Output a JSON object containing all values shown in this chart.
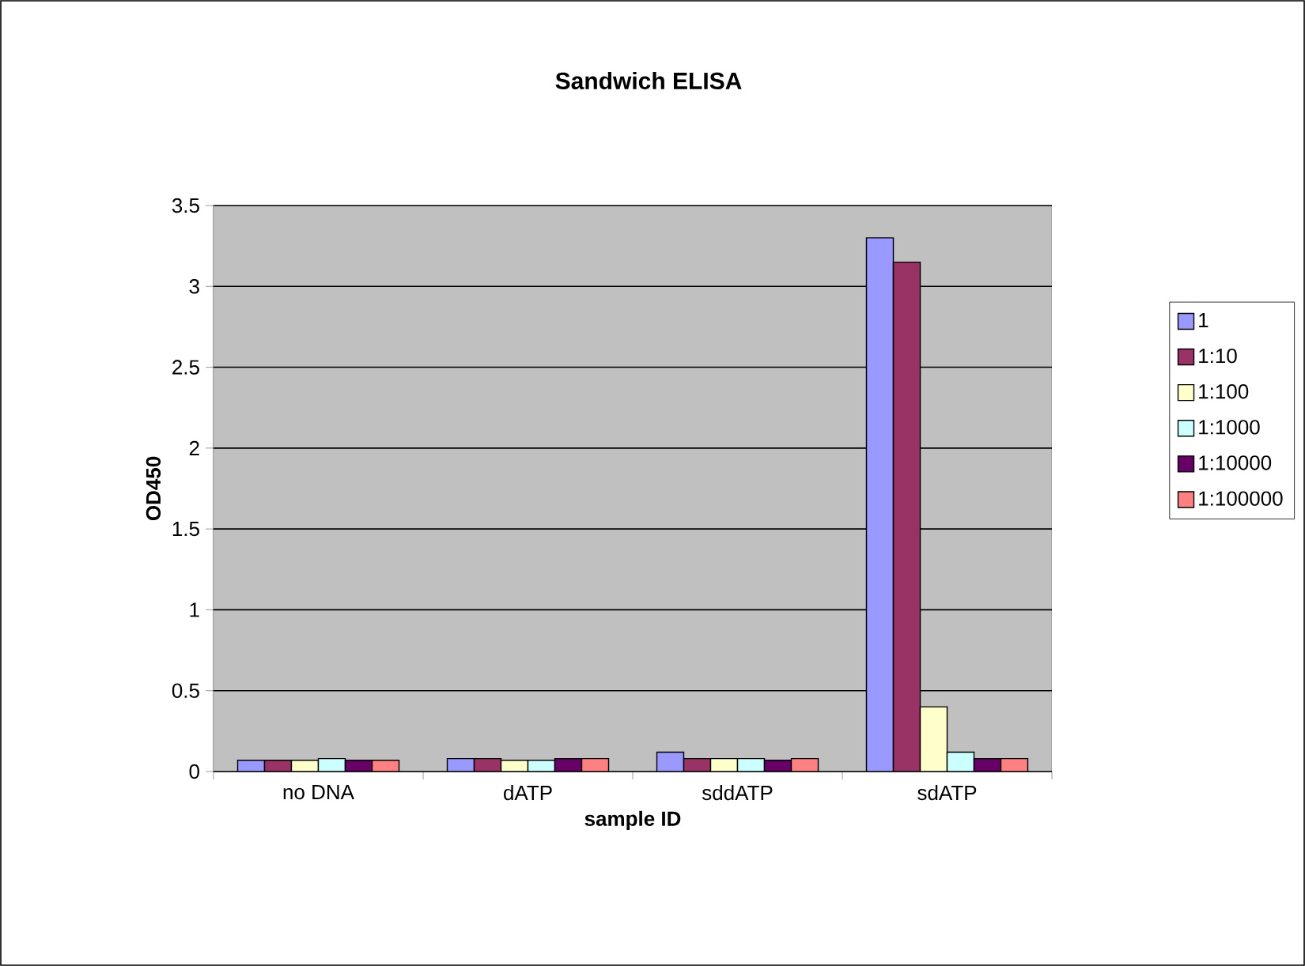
{
  "chart_data": {
    "type": "bar",
    "title": "Sandwich ELISA",
    "xlabel": "sample ID",
    "ylabel": "OD450",
    "categories": [
      "no DNA",
      "dATP",
      "sddATP",
      "sdATP"
    ],
    "series": [
      {
        "name": "1",
        "color": "#9999ff",
        "values": [
          0.07,
          0.08,
          0.12,
          3.3
        ]
      },
      {
        "name": "1:10",
        "color": "#993366",
        "values": [
          0.07,
          0.08,
          0.08,
          3.15
        ]
      },
      {
        "name": "1:100",
        "color": "#ffffcc",
        "values": [
          0.07,
          0.07,
          0.08,
          0.4
        ]
      },
      {
        "name": "1:1000",
        "color": "#ccffff",
        "values": [
          0.08,
          0.07,
          0.08,
          0.12
        ]
      },
      {
        "name": "1:10000",
        "color": "#660066",
        "values": [
          0.07,
          0.08,
          0.07,
          0.08
        ]
      },
      {
        "name": "1:100000",
        "color": "#ff8080",
        "values": [
          0.07,
          0.08,
          0.08,
          0.08
        ]
      }
    ],
    "ylim": [
      0,
      3.5
    ],
    "yticks": [
      0,
      0.5,
      1,
      1.5,
      2,
      2.5,
      3,
      3.5
    ],
    "grid": "y",
    "legend": "right"
  }
}
